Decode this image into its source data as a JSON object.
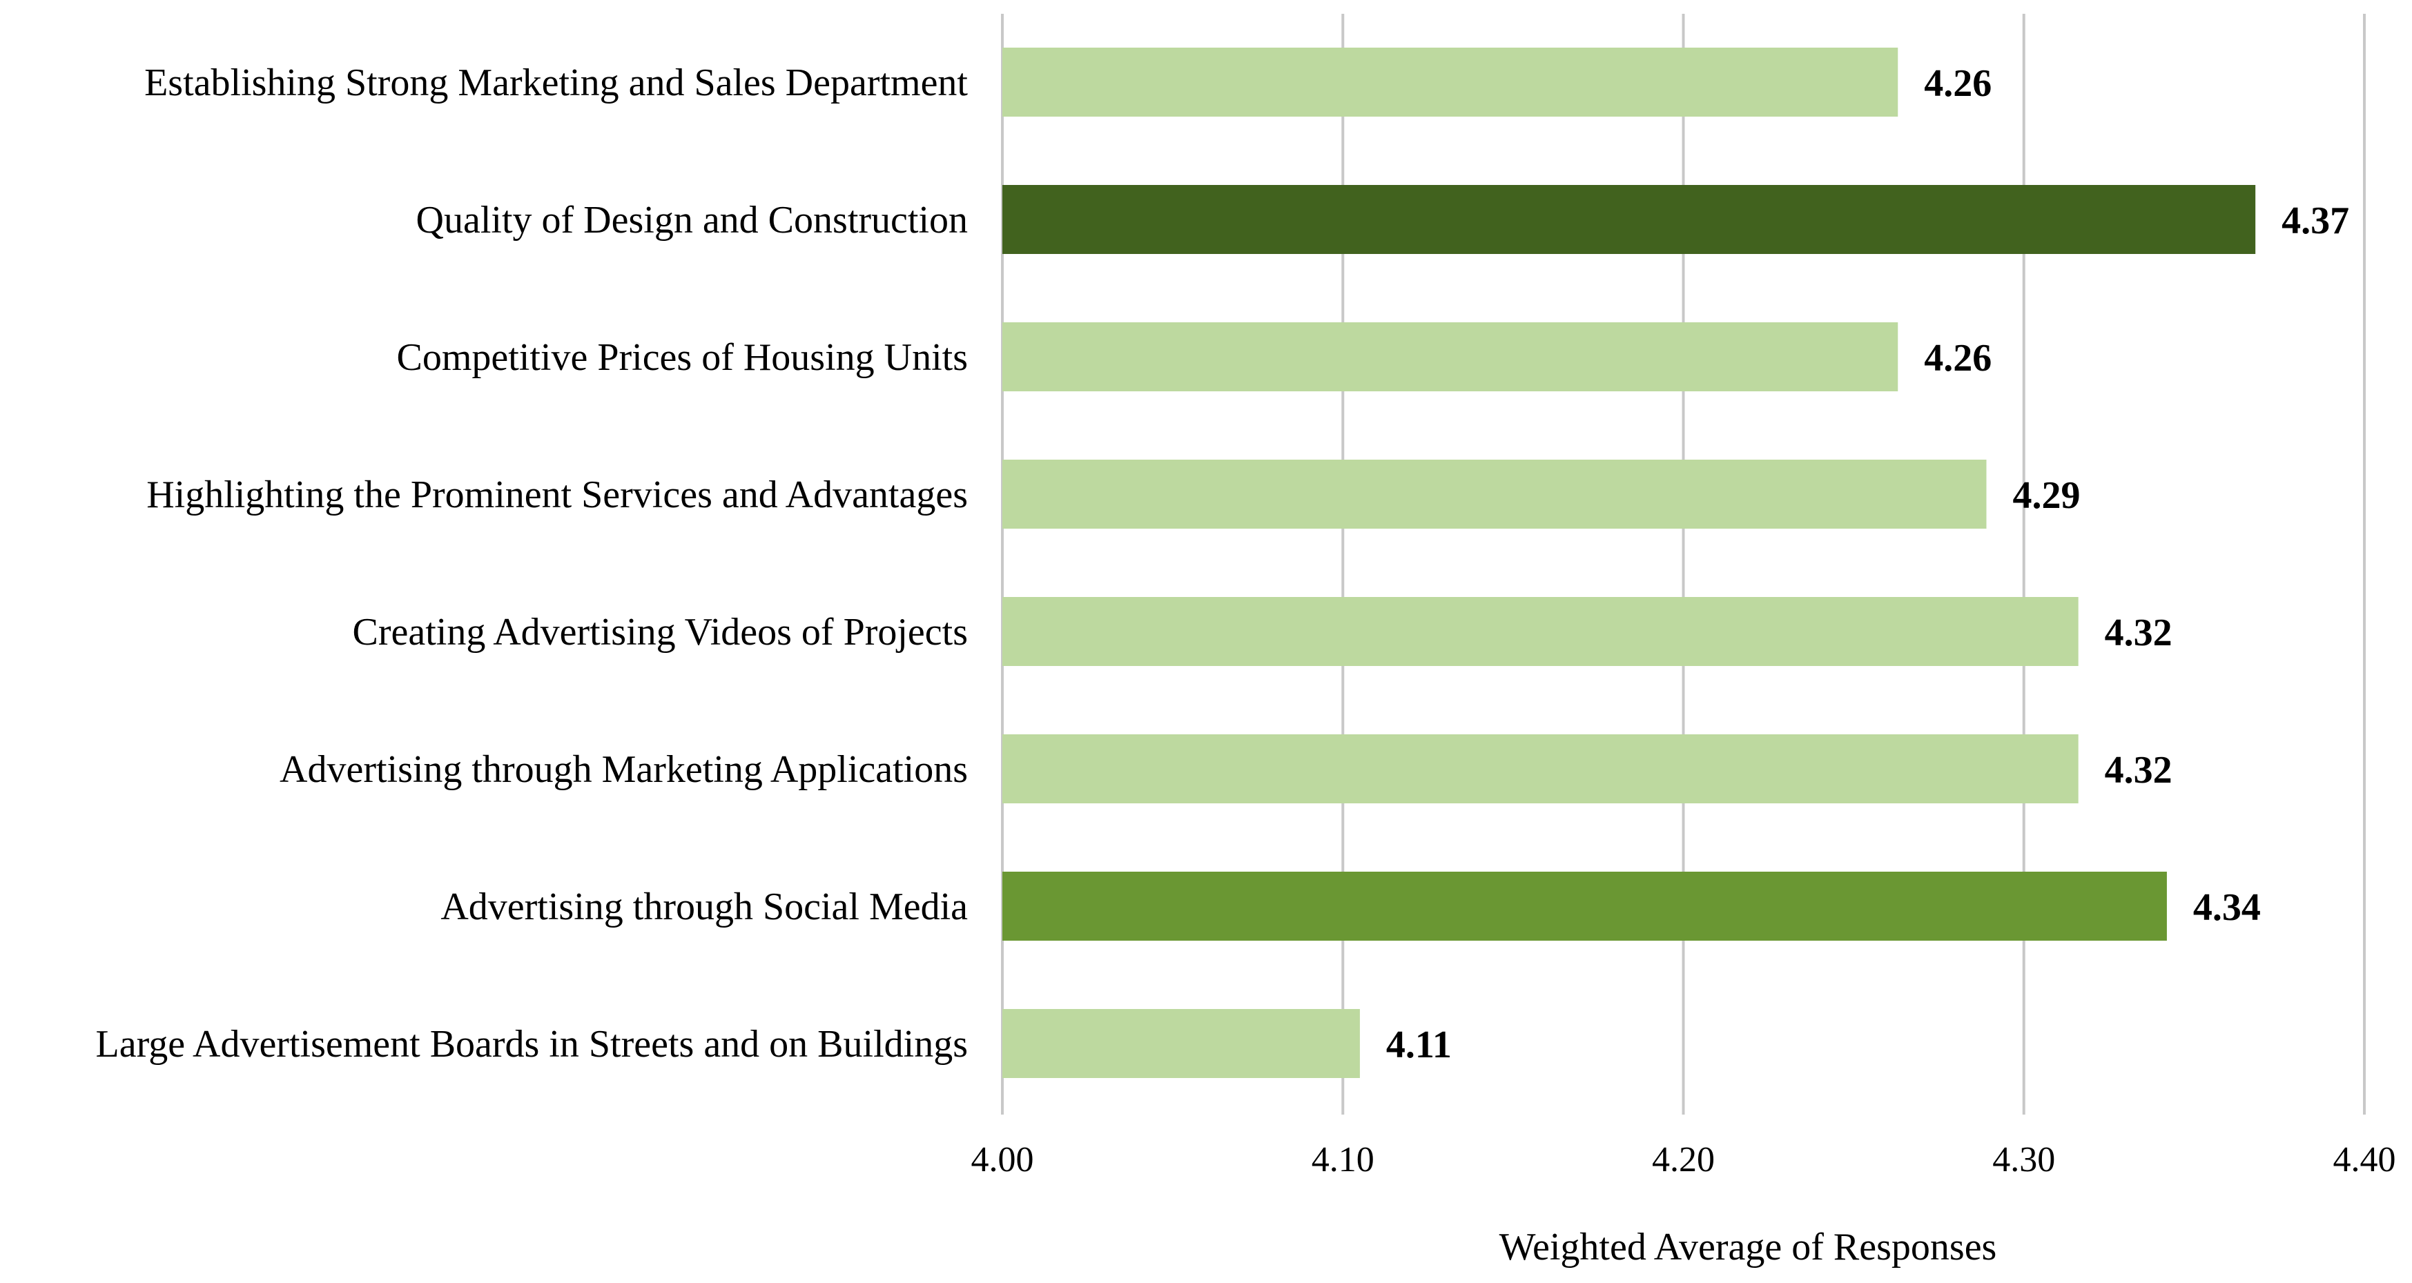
{
  "chart_data": {
    "type": "bar",
    "orientation": "horizontal",
    "categories": [
      "Establishing Strong Marketing and Sales Department",
      "Quality of Design and Construction",
      "Competitive Prices of Housing Units",
      "Highlighting the Prominent Services and Advantages",
      "Creating Advertising Videos of Projects",
      "Advertising through Marketing Applications",
      "Advertising through Social Media",
      "Large Advertisement Boards in Streets and on Buildings"
    ],
    "values": [
      4.263,
      4.368,
      4.263,
      4.289,
      4.316,
      4.316,
      4.342,
      4.105
    ],
    "value_labels": [
      "4.26",
      "4.37",
      "4.26",
      "4.29",
      "4.32",
      "4.32",
      "4.34",
      "4.11"
    ],
    "bar_colors": [
      "#bdd99f",
      "#41621e",
      "#bdd99f",
      "#bdd99f",
      "#bdd99f",
      "#bdd99f",
      "#6a9733",
      "#bdd99f"
    ],
    "xlabel": "Weighted Average of Responses",
    "ylabel": "",
    "title": "",
    "xlim": [
      4.0,
      4.4
    ],
    "xticks": [
      4.0,
      4.1,
      4.2,
      4.3,
      4.4
    ],
    "xtick_labels": [
      "4.00",
      "4.10",
      "4.20",
      "4.30",
      "4.40"
    ],
    "grid": true,
    "legend": "none"
  }
}
